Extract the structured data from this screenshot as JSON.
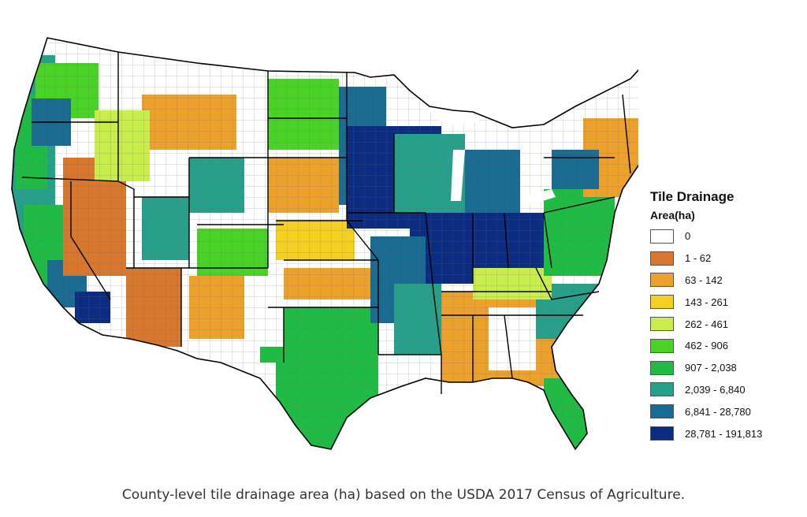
{
  "legend": {
    "title": "Tile Drainage",
    "subtitle": "Area(ha)",
    "classes": [
      {
        "label": "0",
        "color": "#ffffff"
      },
      {
        "label": "1 - 62",
        "color": "#d8772e"
      },
      {
        "label": "63 - 142",
        "color": "#eca12b"
      },
      {
        "label": "143 - 261",
        "color": "#f5d11f"
      },
      {
        "label": "262 - 461",
        "color": "#c9ee4c"
      },
      {
        "label": "462 - 906",
        "color": "#48d326"
      },
      {
        "label": "907 - 2,038",
        "color": "#1ebc44"
      },
      {
        "label": "2,039 - 6,840",
        "color": "#26a08a"
      },
      {
        "label": "6,841 - 28,780",
        "color": "#1a6b91"
      },
      {
        "label": "28,781 - 191,813",
        "color": "#0b2c80"
      }
    ]
  },
  "caption": "County-level tile drainage area (ha) based on the USDA 2017 Census of Agriculture."
}
